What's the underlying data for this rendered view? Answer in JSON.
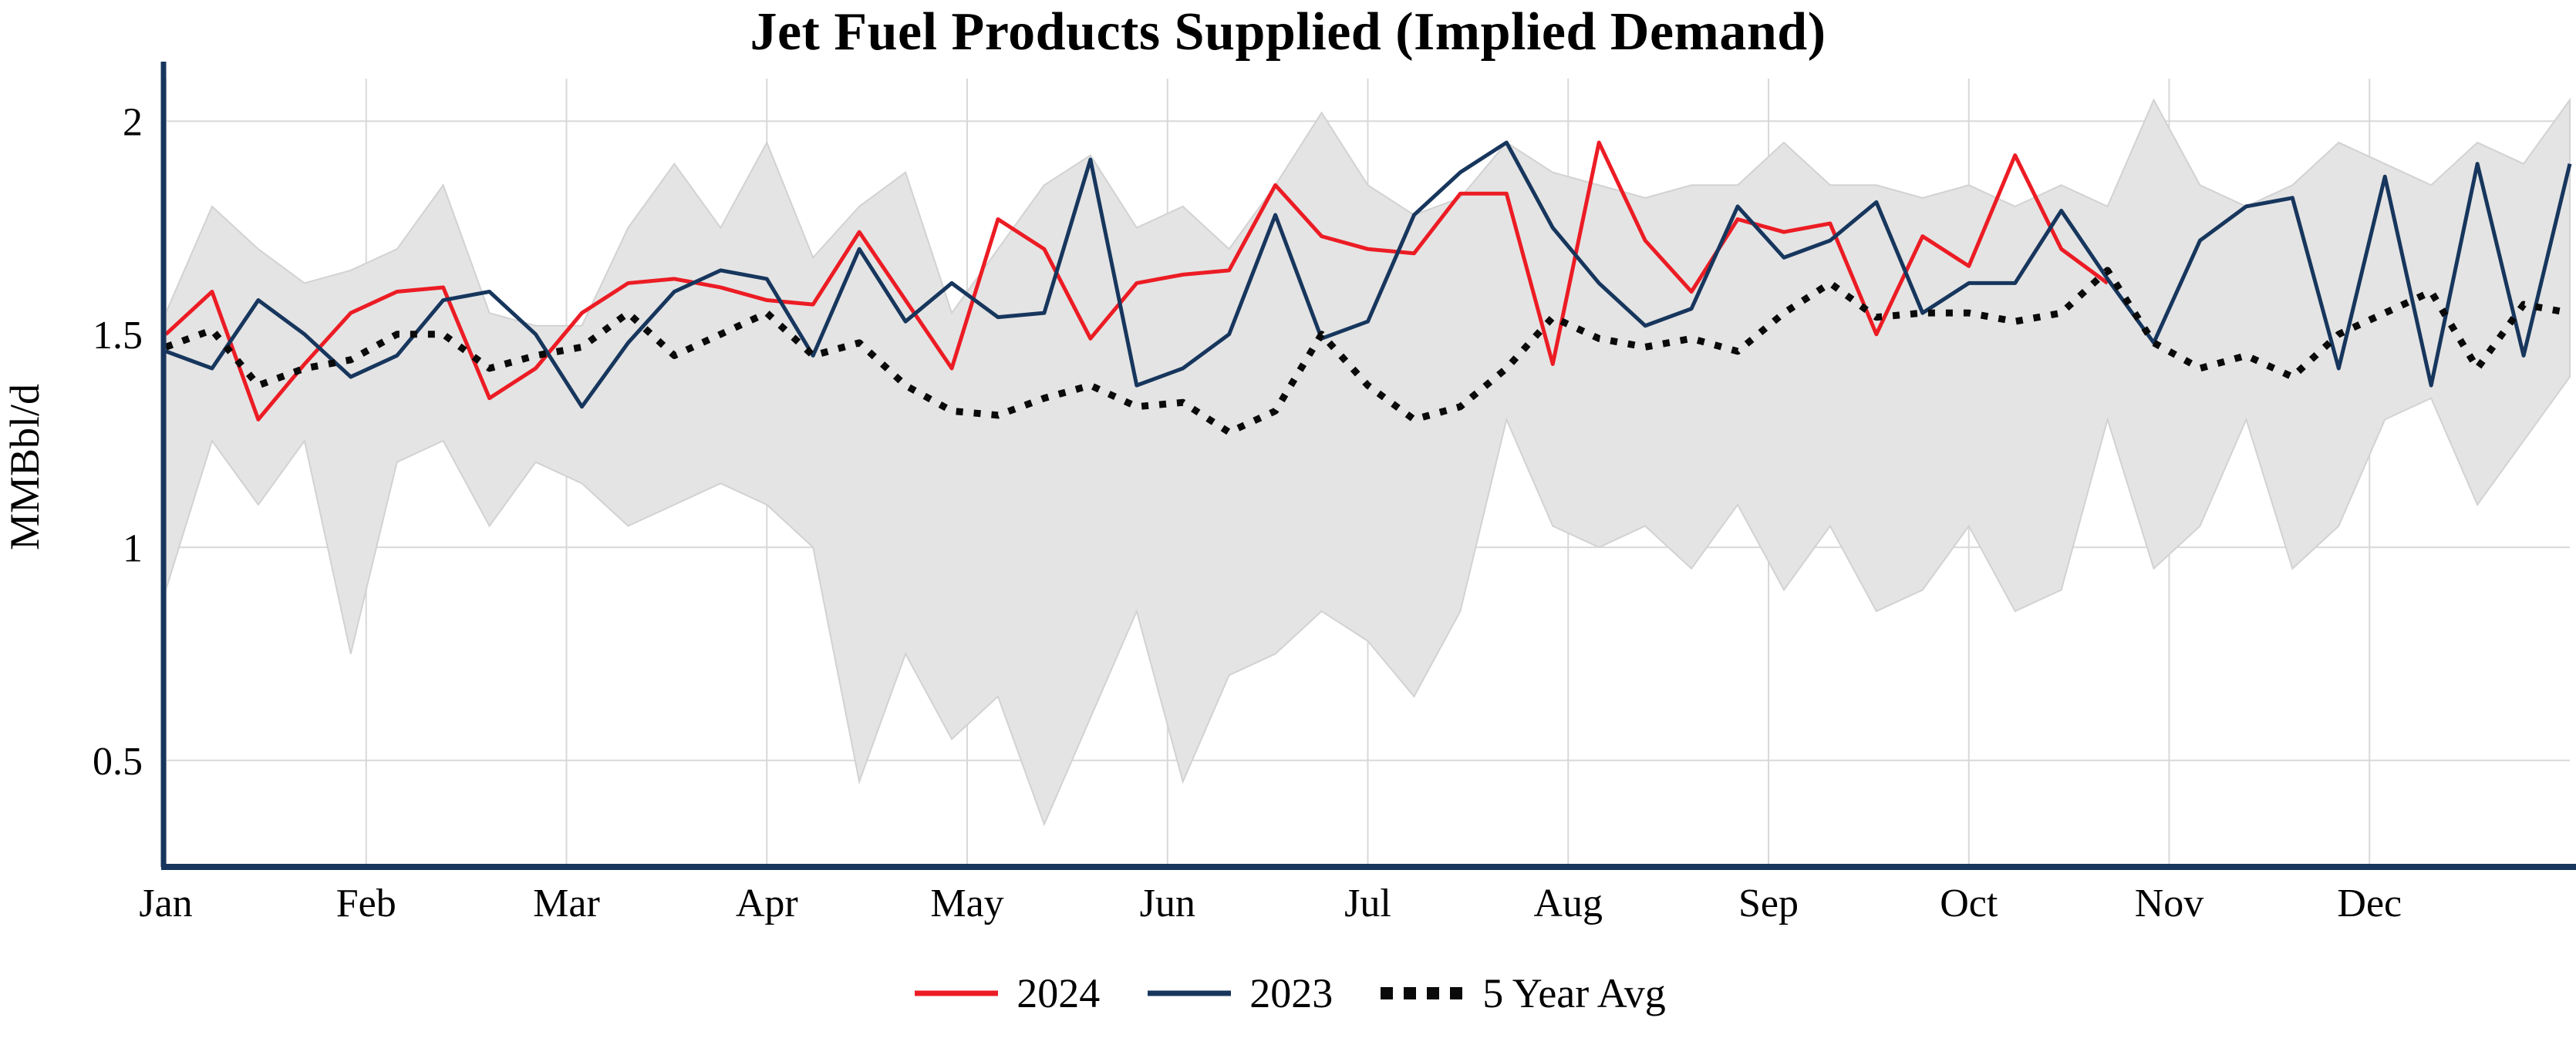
{
  "chart_data": {
    "type": "line",
    "title": "Jet Fuel Products Supplied (Implied Demand)",
    "ylabel": "MMBbl/d",
    "xlabel": "",
    "x_unit": "week-of-year",
    "x_tick_labels": [
      "Jan",
      "Feb",
      "Mar",
      "Apr",
      "May",
      "Jun",
      "Jul",
      "Aug",
      "Sep",
      "Oct",
      "Nov",
      "Dec"
    ],
    "y_ticks": [
      2,
      1.5,
      1,
      0.5
    ],
    "ylim": [
      0.25,
      2.1
    ],
    "weeks_per_year": 53,
    "grid": true,
    "grid_color": "#d8d8d8",
    "axis_color": "#17365d",
    "legend_position": "bottom",
    "legend": [
      {
        "label": "2024",
        "color": "#ec1c24",
        "style": "solid"
      },
      {
        "label": "2023",
        "color": "#17365d",
        "style": "solid"
      },
      {
        "label": "5 Year Avg",
        "color": "#0a0a0a",
        "style": "dotted"
      }
    ],
    "band": {
      "name": "five-year-range",
      "color": "#e4e4e4",
      "edge_color": "#d2d2d2",
      "min": [
        0.9,
        1.25,
        1.1,
        1.25,
        0.75,
        1.2,
        1.25,
        1.05,
        1.2,
        1.15,
        1.05,
        1.1,
        1.15,
        1.1,
        1.0,
        0.45,
        0.75,
        0.55,
        0.65,
        0.35,
        0.6,
        0.85,
        0.45,
        0.7,
        0.75,
        0.85,
        0.78,
        0.65,
        0.85,
        1.3,
        1.05,
        1.0,
        1.05,
        0.95,
        1.1,
        0.9,
        1.05,
        0.85,
        0.9,
        1.05,
        0.85,
        0.9,
        1.3,
        0.95,
        1.05,
        1.3,
        0.95,
        1.05,
        1.3,
        1.35,
        1.1,
        1.25,
        1.4
      ],
      "max": [
        1.55,
        1.8,
        1.7,
        1.62,
        1.65,
        1.7,
        1.85,
        1.55,
        1.52,
        1.52,
        1.75,
        1.9,
        1.75,
        1.95,
        1.68,
        1.8,
        1.88,
        1.55,
        1.7,
        1.85,
        1.92,
        1.75,
        1.8,
        1.7,
        1.85,
        2.02,
        1.85,
        1.78,
        1.82,
        1.95,
        1.88,
        1.85,
        1.82,
        1.85,
        1.85,
        1.95,
        1.85,
        1.85,
        1.82,
        1.85,
        1.8,
        1.85,
        1.8,
        2.05,
        1.85,
        1.8,
        1.85,
        1.95,
        1.9,
        1.85,
        1.95,
        1.9,
        2.05
      ]
    },
    "series": [
      {
        "name": "2024",
        "color": "#ec1c24",
        "dash": "solid",
        "width": 5,
        "values": [
          1.5,
          1.6,
          1.3,
          1.43,
          1.55,
          1.6,
          1.61,
          1.35,
          1.42,
          1.55,
          1.62,
          1.63,
          1.61,
          1.58,
          1.57,
          1.74,
          1.58,
          1.42,
          1.77,
          1.7,
          1.49,
          1.62,
          1.64,
          1.65,
          1.85,
          1.73,
          1.7,
          1.69,
          1.83,
          1.83,
          1.43,
          1.95,
          1.72,
          1.6,
          1.77,
          1.74,
          1.76,
          1.5,
          1.73,
          1.66,
          1.92,
          1.7,
          1.62
        ]
      },
      {
        "name": "2023",
        "color": "#17365d",
        "dash": "solid",
        "width": 5,
        "values": [
          1.46,
          1.42,
          1.58,
          1.5,
          1.4,
          1.45,
          1.58,
          1.6,
          1.5,
          1.33,
          1.48,
          1.6,
          1.65,
          1.63,
          1.45,
          1.7,
          1.53,
          1.62,
          1.54,
          1.55,
          1.91,
          1.38,
          1.42,
          1.5,
          1.78,
          1.49,
          1.53,
          1.78,
          1.88,
          1.95,
          1.75,
          1.62,
          1.52,
          1.56,
          1.8,
          1.68,
          1.72,
          1.81,
          1.55,
          1.62,
          1.62,
          1.79,
          1.63,
          1.48,
          1.72,
          1.8,
          1.82,
          1.42,
          1.87,
          1.38,
          1.9,
          1.45,
          1.9
        ]
      },
      {
        "name": "5 Year Avg",
        "color": "#0a0a0a",
        "dash": "dotted",
        "width": 9,
        "values": [
          1.47,
          1.51,
          1.38,
          1.42,
          1.44,
          1.5,
          1.5,
          1.42,
          1.45,
          1.47,
          1.55,
          1.45,
          1.5,
          1.55,
          1.45,
          1.48,
          1.38,
          1.32,
          1.31,
          1.35,
          1.38,
          1.33,
          1.34,
          1.27,
          1.32,
          1.5,
          1.38,
          1.3,
          1.33,
          1.42,
          1.54,
          1.49,
          1.47,
          1.49,
          1.46,
          1.55,
          1.62,
          1.54,
          1.55,
          1.55,
          1.53,
          1.55,
          1.65,
          1.48,
          1.42,
          1.45,
          1.4,
          1.5,
          1.55,
          1.6,
          1.42,
          1.57,
          1.55
        ]
      }
    ]
  }
}
